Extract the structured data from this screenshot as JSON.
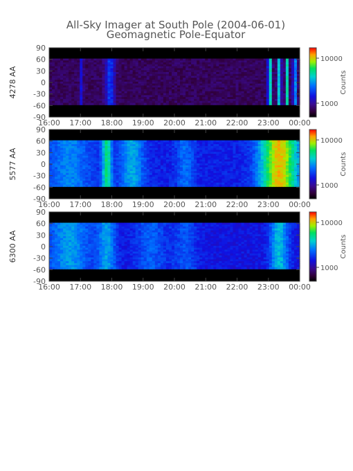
{
  "chart_data": {
    "type": "heatmap",
    "title": "All-Sky Imager at South Pole (2004-06-01)",
    "subtitle": "Geomagnetic Pole-Equator",
    "x_ticks": [
      "16:00",
      "17:00",
      "18:00",
      "19:00",
      "20:00",
      "21:00",
      "22:00",
      "23:00",
      "00:00"
    ],
    "y_ticks": [
      "90",
      "60",
      "30",
      "0",
      "-30",
      "-60",
      "-90"
    ],
    "ylim": [
      -90,
      90
    ],
    "colorbar_label": "Counts",
    "colorbar_ticks": [
      "10000",
      "1000"
    ],
    "panels": [
      {
        "ylabel": "4278 AA",
        "base_level": 0.12,
        "features": [
          {
            "t": 1.0,
            "w": 0.05,
            "a": 0.2
          },
          {
            "t": 1.9,
            "w": 0.15,
            "a": 0.25
          },
          {
            "t": 7.0,
            "w": 0.06,
            "a": 0.55
          },
          {
            "t": 7.3,
            "w": 0.06,
            "a": 0.45
          },
          {
            "t": 7.55,
            "w": 0.05,
            "a": 0.5
          },
          {
            "t": 7.8,
            "w": 0.06,
            "a": 0.4
          }
        ]
      },
      {
        "ylabel": "5577 AA",
        "base_level": 0.32,
        "features": [
          {
            "t": 0.6,
            "w": 0.7,
            "a": 0.15
          },
          {
            "t": 1.8,
            "w": 0.15,
            "a": 0.35
          },
          {
            "t": 2.6,
            "w": 0.4,
            "a": 0.2
          },
          {
            "t": 4.3,
            "w": 0.3,
            "a": 0.12
          },
          {
            "t": 7.3,
            "w": 0.6,
            "a": 0.55
          }
        ]
      },
      {
        "ylabel": "6300 AA",
        "base_level": 0.3,
        "features": [
          {
            "t": 0.6,
            "w": 0.7,
            "a": 0.2
          },
          {
            "t": 1.8,
            "w": 0.3,
            "a": 0.2
          },
          {
            "t": 3.2,
            "w": 0.5,
            "a": 0.12
          },
          {
            "t": 4.3,
            "w": 0.4,
            "a": 0.1
          },
          {
            "t": 7.3,
            "w": 0.3,
            "a": 0.25
          }
        ]
      }
    ]
  }
}
